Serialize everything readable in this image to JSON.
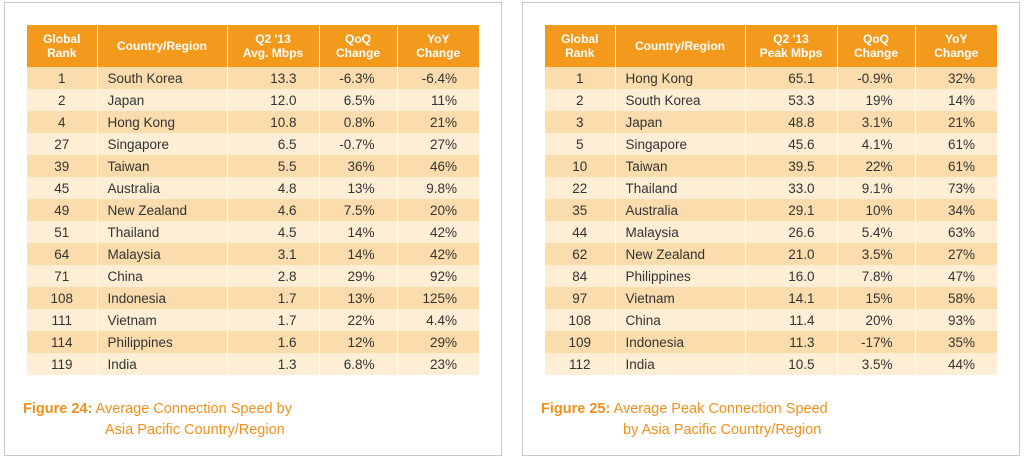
{
  "chart_data": [
    {
      "type": "table",
      "columns": [
        "Global\nRank",
        "Country/Region",
        "Q2 '13\nAvg. Mbps",
        "QoQ\nChange",
        "YoY\nChange"
      ],
      "rows": [
        [
          "1",
          "South Korea",
          "13.3",
          "-6.3%",
          "-6.4%"
        ],
        [
          "2",
          "Japan",
          "12.0",
          "6.5%",
          "11%"
        ],
        [
          "4",
          "Hong Kong",
          "10.8",
          "0.8%",
          "21%"
        ],
        [
          "27",
          "Singapore",
          "6.5",
          "-0.7%",
          "27%"
        ],
        [
          "39",
          "Taiwan",
          "5.5",
          "36%",
          "46%"
        ],
        [
          "45",
          "Australia",
          "4.8",
          "13%",
          "9.8%"
        ],
        [
          "49",
          "New Zealand",
          "4.6",
          "7.5%",
          "20%"
        ],
        [
          "51",
          "Thailand",
          "4.5",
          "14%",
          "42%"
        ],
        [
          "64",
          "Malaysia",
          "3.1",
          "14%",
          "42%"
        ],
        [
          "71",
          "China",
          "2.8",
          "29%",
          "92%"
        ],
        [
          "108",
          "Indonesia",
          "1.7",
          "13%",
          "125%"
        ],
        [
          "111",
          "Vietnam",
          "1.7",
          "22%",
          "4.4%"
        ],
        [
          "114",
          "Philippines",
          "1.6",
          "12%",
          "29%"
        ],
        [
          "119",
          "India",
          "1.3",
          "6.8%",
          "23%"
        ]
      ],
      "caption_label": "Figure 24:",
      "caption_line1": "Average Connection Speed by",
      "caption_line2": "Asia Pacific Country/Region"
    },
    {
      "type": "table",
      "columns": [
        "Global\nRank",
        "Country/Region",
        "Q2 '13\nPeak Mbps",
        "QoQ\nChange",
        "YoY\nChange"
      ],
      "rows": [
        [
          "1",
          "Hong Kong",
          "65.1",
          "-0.9%",
          "32%"
        ],
        [
          "2",
          "South Korea",
          "53.3",
          "19%",
          "14%"
        ],
        [
          "3",
          "Japan",
          "48.8",
          "3.1%",
          "21%"
        ],
        [
          "5",
          "Singapore",
          "45.6",
          "4.1%",
          "61%"
        ],
        [
          "10",
          "Taiwan",
          "39.5",
          "22%",
          "61%"
        ],
        [
          "22",
          "Thailand",
          "33.0",
          "9.1%",
          "73%"
        ],
        [
          "35",
          "Australia",
          "29.1",
          "10%",
          "34%"
        ],
        [
          "44",
          "Malaysia",
          "26.6",
          "5.4%",
          "63%"
        ],
        [
          "62",
          "New Zealand",
          "21.0",
          "3.5%",
          "27%"
        ],
        [
          "84",
          "Philippines",
          "16.0",
          "7.8%",
          "47%"
        ],
        [
          "97",
          "Vietnam",
          "14.1",
          "15%",
          "58%"
        ],
        [
          "108",
          "China",
          "11.4",
          "20%",
          "93%"
        ],
        [
          "109",
          "Indonesia",
          "11.3",
          "-17%",
          "35%"
        ],
        [
          "112",
          "India",
          "10.5",
          "3.5%",
          "44%"
        ]
      ],
      "caption_label": "Figure 25:",
      "caption_line1": "Average Peak Connection Speed",
      "caption_line2": "by Asia Pacific Country/Region"
    }
  ],
  "colors": {
    "header": "#f39a1d",
    "row_odd": "#fbdcac",
    "row_even": "#fdeed5",
    "caption": "#f0901a"
  }
}
